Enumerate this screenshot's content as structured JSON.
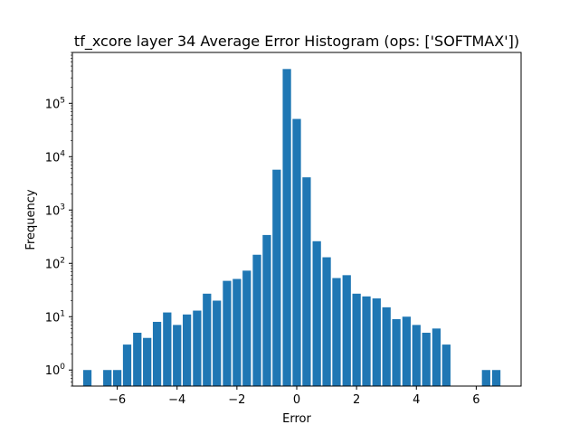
{
  "chart_data": {
    "type": "bar",
    "title": "tf_xcore layer 34 Average Error Histogram (ops: ['SOFTMAX'])",
    "xlabel": "Error",
    "ylabel": "Frequency",
    "yscale": "log",
    "xlim": [
      -7.5,
      7.5
    ],
    "ylim": [
      0.5,
      900000
    ],
    "grid": false,
    "bar_color": "#1f77b4",
    "bar_width": 0.28,
    "x_ticks": [
      {
        "value": -6,
        "label": "−6"
      },
      {
        "value": -4,
        "label": "−4"
      },
      {
        "value": -2,
        "label": "−2"
      },
      {
        "value": 0,
        "label": "0"
      },
      {
        "value": 2,
        "label": "2"
      },
      {
        "value": 4,
        "label": "4"
      },
      {
        "value": 6,
        "label": "6"
      }
    ],
    "y_ticks": [
      {
        "value": 1,
        "base": "10",
        "exp": "0"
      },
      {
        "value": 10,
        "base": "10",
        "exp": "1"
      },
      {
        "value": 100,
        "base": "10",
        "exp": "2"
      },
      {
        "value": 1000,
        "base": "10",
        "exp": "3"
      },
      {
        "value": 10000,
        "base": "10",
        "exp": "4"
      },
      {
        "value": 100000,
        "base": "10",
        "exp": "5"
      }
    ],
    "x": [
      -7.0,
      -6.67,
      -6.33,
      -6.0,
      -5.67,
      -5.33,
      -5.0,
      -4.67,
      -4.33,
      -4.0,
      -3.67,
      -3.33,
      -3.0,
      -2.67,
      -2.33,
      -2.0,
      -1.67,
      -1.33,
      -1.0,
      -0.67,
      -0.33,
      0.0,
      0.33,
      0.67,
      1.0,
      1.33,
      1.67,
      2.0,
      2.33,
      2.67,
      3.0,
      3.33,
      3.67,
      4.0,
      4.33,
      4.67,
      5.0,
      5.33,
      5.67,
      6.0,
      6.33,
      6.67
    ],
    "values": [
      1,
      0,
      1,
      1,
      3,
      5,
      4,
      8,
      12,
      7,
      11,
      13,
      27,
      20,
      47,
      51,
      73,
      145,
      340,
      5700,
      440000,
      51000,
      4100,
      260,
      130,
      53,
      60,
      27,
      24,
      22,
      15,
      9,
      10,
      7,
      5,
      6,
      3,
      0,
      0,
      0,
      1,
      1
    ]
  }
}
